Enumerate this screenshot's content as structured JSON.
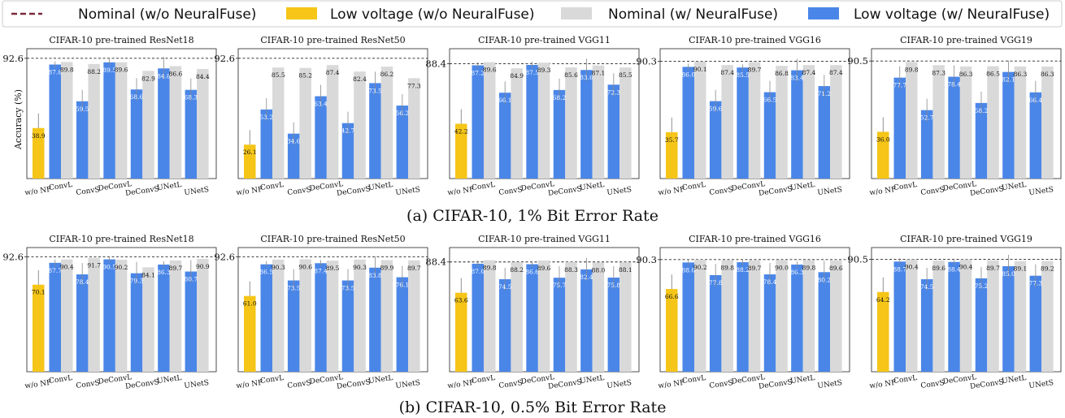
{
  "legend": {
    "nominal_wo": "Nominal (w/o NeuralFuse)",
    "low_wo": "Low voltage (w/o NeuralFuse)",
    "nominal_w": "Nominal (w/ NeuralFuse)",
    "low_w": "Low voltage (w/ NeuralFuse)"
  },
  "colors": {
    "nominal_line": "#7a2b3d",
    "low_wo": "#f5c518",
    "nominal_w": "#d9d9d9",
    "low_w": "#4a86e8"
  },
  "ylabel": "Accuracy (%)",
  "captions": [
    "(a) CIFAR-10, 1% Bit Error Rate",
    "(b) CIFAR-10, 0.5% Bit Error Rate"
  ],
  "chart_data": [
    {
      "type": "bar",
      "row": 0,
      "title": "CIFAR-10 pre-trained ResNet18",
      "nominal": 92.6,
      "categories": [
        "w/o NF",
        "ConvL",
        "ConvS",
        "DeConvL",
        "DeConvS",
        "UNetL",
        "UNetS"
      ],
      "low_wo": 38.9,
      "nominal_w": [
        89.8,
        88.2,
        89.6,
        82.9,
        86.6,
        84.4
      ],
      "low_w": [
        87.8,
        59.5,
        89.5,
        68.6,
        84.8,
        68.3
      ]
    },
    {
      "type": "bar",
      "row": 0,
      "title": "CIFAR-10 pre-trained ResNet50",
      "nominal": 92.6,
      "categories": [
        "w/o NF",
        "ConvL",
        "ConvS",
        "DeConvL",
        "DeConvS",
        "UNetL",
        "UNetS"
      ],
      "low_wo": 26.1,
      "nominal_w": [
        85.5,
        85.2,
        87.4,
        82.4,
        86.2,
        77.3
      ],
      "low_w": [
        53.2,
        34.6,
        63.4,
        42.7,
        73.5,
        56.2
      ]
    },
    {
      "type": "bar",
      "row": 0,
      "title": "CIFAR-10 pre-trained VGG11",
      "nominal": 88.4,
      "categories": [
        "w/o NF",
        "ConvL",
        "ConvS",
        "DeConvL",
        "DeConvS",
        "UNetL",
        "UNetS"
      ],
      "low_wo": 42.2,
      "nominal_w": [
        89.6,
        84.9,
        89.3,
        85.6,
        87.1,
        85.5
      ],
      "low_w": [
        87.2,
        66.1,
        87.5,
        68.2,
        83.6,
        72.3
      ]
    },
    {
      "type": "bar",
      "row": 0,
      "title": "CIFAR-10 pre-trained VGG16",
      "nominal": 90.3,
      "categories": [
        "w/o NF",
        "ConvL",
        "ConvS",
        "DeConvL",
        "DeConvS",
        "UNetL",
        "UNetS"
      ],
      "low_wo": 35.7,
      "nominal_w": [
        90.1,
        87.4,
        89.7,
        86.8,
        87.4,
        87.4
      ],
      "low_w": [
        86.0,
        59.6,
        85.5,
        66.5,
        83.4,
        71.2
      ]
    },
    {
      "type": "bar",
      "row": 0,
      "title": "CIFAR-10 pre-trained VGG19",
      "nominal": 90.5,
      "categories": [
        "w/o NF",
        "ConvL",
        "ConvS",
        "DeConvL",
        "DeConvS",
        "UNetL",
        "UNetS"
      ],
      "low_wo": 36.0,
      "nominal_w": [
        89.8,
        87.3,
        86.3,
        86.5,
        86.3,
        86.3
      ],
      "low_w": [
        77.7,
        52.7,
        78.4,
        58.2,
        82.1,
        66.4
      ]
    },
    {
      "type": "bar",
      "row": 1,
      "title": "CIFAR-10 pre-trained ResNet18",
      "nominal": 92.6,
      "categories": [
        "w/o NF",
        "ConvL",
        "ConvS",
        "DeConvL",
        "DeConvS",
        "UNetL",
        "UNetS"
      ],
      "low_wo": 70.1,
      "nominal_w": [
        90.4,
        91.7,
        90.2,
        84.1,
        89.7,
        90.9
      ],
      "low_w": [
        87.7,
        78.4,
        90.5,
        79.3,
        86.3,
        80.7
      ]
    },
    {
      "type": "bar",
      "row": 1,
      "title": "CIFAR-10 pre-trained ResNet50",
      "nominal": 92.6,
      "categories": [
        "w/o NF",
        "ConvL",
        "ConvS",
        "DeConvL",
        "DeConvS",
        "UNetL",
        "UNetS"
      ],
      "low_wo": 61.0,
      "nominal_w": [
        90.3,
        90.6,
        89.5,
        90.3,
        89.9,
        89.7
      ],
      "low_w": [
        86.5,
        73.5,
        87.4,
        73.5,
        83.8,
        76.1
      ]
    },
    {
      "type": "bar",
      "row": 1,
      "title": "CIFAR-10 pre-trained VGG11",
      "nominal": 88.4,
      "categories": [
        "w/o NF",
        "ConvL",
        "ConvS",
        "DeConvL",
        "DeConvS",
        "UNetL",
        "UNetS"
      ],
      "low_wo": 63.6,
      "nominal_w": [
        89.8,
        88.2,
        89.6,
        88.3,
        88.0,
        88.1
      ],
      "low_w": [
        87.0,
        74.5,
        86.6,
        75.7,
        82.4,
        75.8
      ]
    },
    {
      "type": "bar",
      "row": 1,
      "title": "CIFAR-10 pre-trained VGG16",
      "nominal": 90.3,
      "categories": [
        "w/o NF",
        "ConvL",
        "ConvS",
        "DeConvL",
        "DeConvS",
        "UNetL",
        "UNetS"
      ],
      "low_wo": 66.6,
      "nominal_w": [
        90.2,
        89.8,
        89.7,
        90.0,
        89.8,
        89.6
      ],
      "low_w": [
        88.0,
        77.8,
        88.2,
        78.4,
        86.3,
        80.2
      ]
    },
    {
      "type": "bar",
      "row": 1,
      "title": "CIFAR-10 pre-trained VGG19",
      "nominal": 90.5,
      "categories": [
        "w/o NF",
        "ConvL",
        "ConvS",
        "DeConvL",
        "DeConvS",
        "UNetL",
        "UNetS"
      ],
      "low_wo": 64.2,
      "nominal_w": [
        90.4,
        89.6,
        90.4,
        89.7,
        89.1,
        89.2
      ],
      "low_w": [
        88.7,
        74.5,
        88.4,
        75.2,
        85.0,
        77.3
      ]
    }
  ]
}
